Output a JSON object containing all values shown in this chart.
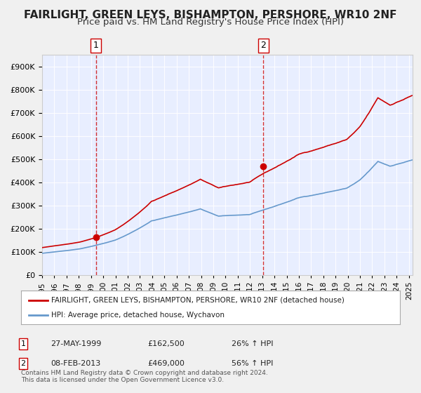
{
  "title": "FAIRLIGHT, GREEN LEYS, BISHAMPTON, PERSHORE, WR10 2NF",
  "subtitle": "Price paid vs. HM Land Registry's House Price Index (HPI)",
  "background_color": "#f0f4ff",
  "plot_bg_color": "#e8eeff",
  "grid_color": "#ffffff",
  "ylabel_values": [
    "£0",
    "£100K",
    "£200K",
    "£300K",
    "£400K",
    "£500K",
    "£600K",
    "£700K",
    "£800K",
    "£900K"
  ],
  "yticks": [
    0,
    100000,
    200000,
    300000,
    400000,
    500000,
    600000,
    700000,
    800000,
    900000
  ],
  "ylim": [
    0,
    950000
  ],
  "xlim_start": 1995.0,
  "xlim_end": 2025.3,
  "xticks": [
    1995,
    1996,
    1997,
    1998,
    1999,
    2000,
    2001,
    2002,
    2003,
    2004,
    2005,
    2006,
    2007,
    2008,
    2009,
    2010,
    2011,
    2012,
    2013,
    2014,
    2015,
    2016,
    2017,
    2018,
    2019,
    2020,
    2021,
    2022,
    2023,
    2024,
    2025
  ],
  "red_line_color": "#cc0000",
  "blue_line_color": "#6699cc",
  "marker1_x": 1999.4,
  "marker1_y": 162500,
  "marker2_x": 2013.1,
  "marker2_y": 469000,
  "vline1_x": 1999.4,
  "vline2_x": 2013.1,
  "legend_label_red": "FAIRLIGHT, GREEN LEYS, BISHAMPTON, PERSHORE, WR10 2NF (detached house)",
  "legend_label_blue": "HPI: Average price, detached house, Wychavon",
  "annotation1_label": "1",
  "annotation2_label": "2",
  "annotation1_date": "27-MAY-1999",
  "annotation1_price": "£162,500",
  "annotation1_hpi": "26% ↑ HPI",
  "annotation2_date": "08-FEB-2013",
  "annotation2_price": "£469,000",
  "annotation2_hpi": "56% ↑ HPI",
  "footnote": "Contains HM Land Registry data © Crown copyright and database right 2024.\nThis data is licensed under the Open Government Licence v3.0.",
  "title_fontsize": 11,
  "subtitle_fontsize": 9.5
}
